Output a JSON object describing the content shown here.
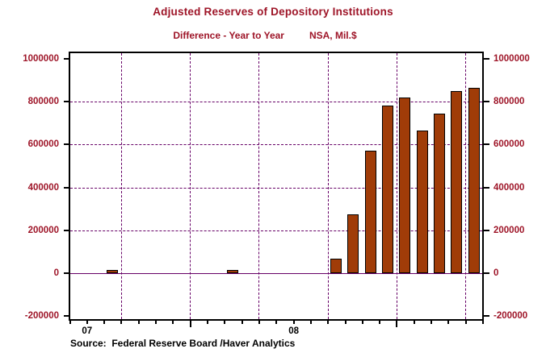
{
  "header": {
    "title": "Adjusted Reserves of Depository Institutions",
    "subtitle_left": "Difference - Year to Year",
    "subtitle_right": "NSA, Mil.$"
  },
  "source_note": "Source:  Federal Reserve Board /Haver Analytics",
  "colors": {
    "text_red": "#9E1528",
    "text_black": "#000000",
    "bar_fill": "#A03C08",
    "bar_outline": "#000000",
    "gridline_purple": "#660066",
    "axis_black": "#000000"
  },
  "chart_data": {
    "type": "bar",
    "title": "Adjusted Reserves of Depository Institutions",
    "subtitle": "Difference - Year to Year    NSA, Mil.$",
    "ylabel": "Mil.$ (difference, year to year, NSA)",
    "xlabel": "",
    "x_axis": {
      "start_month": "Jun 2007",
      "end_month": "Jun 2009",
      "months_span": 24,
      "year_labels": [
        {
          "label": "07",
          "month_index": 1
        },
        {
          "label": "08",
          "month_index": 13
        }
      ],
      "tall_tick_month_indices": [
        7,
        19
      ],
      "v_gridline_month_indices": [
        3,
        7,
        11,
        15,
        19,
        23
      ]
    },
    "y_axis": {
      "ticks": [
        -200000,
        0,
        200000,
        400000,
        600000,
        800000,
        1000000
      ],
      "h_gridline_values": [
        200000,
        400000,
        600000,
        800000
      ],
      "ylim": [
        -220000,
        1030000
      ],
      "grid": "dashed horizontal and vertical, solid zero line"
    },
    "legend": null,
    "bars": [
      {
        "month": "Aug 2007",
        "month_index": 2,
        "value": 10000
      },
      {
        "month": "Mar 2008",
        "month_index": 9,
        "value": 10000
      },
      {
        "month": "Sep 2008",
        "month_index": 15,
        "value": 65000
      },
      {
        "month": "Oct 2008",
        "month_index": 16,
        "value": 272000
      },
      {
        "month": "Nov 2008",
        "month_index": 17,
        "value": 566000
      },
      {
        "month": "Dec 2008",
        "month_index": 18,
        "value": 778000
      },
      {
        "month": "Jan 2009",
        "month_index": 19,
        "value": 816000
      },
      {
        "month": "Feb 2009",
        "month_index": 20,
        "value": 660000
      },
      {
        "month": "Mar 2009",
        "month_index": 21,
        "value": 740000
      },
      {
        "month": "Apr 2009",
        "month_index": 22,
        "value": 845000
      },
      {
        "month": "May 2009",
        "month_index": 23,
        "value": 862000
      }
    ]
  }
}
